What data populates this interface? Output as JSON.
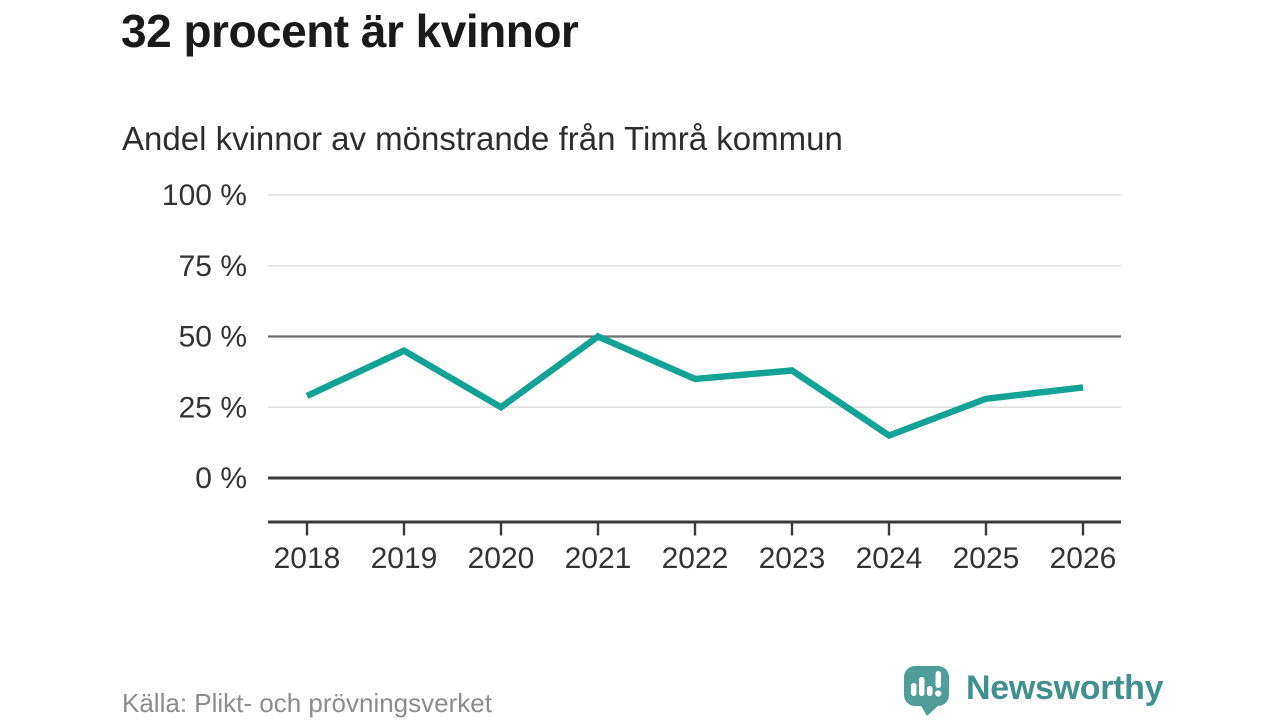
{
  "header": {
    "title": "32 procent är kvinnor",
    "subtitle": "Andel kvinnor av mönstrande från Timrå kommun"
  },
  "chart_data": {
    "type": "line",
    "title": "32 procent är kvinnor",
    "subtitle": "Andel kvinnor av mönstrande från Timrå kommun",
    "x": [
      "2018",
      "2019",
      "2020",
      "2021",
      "2022",
      "2023",
      "2024",
      "2025",
      "2026"
    ],
    "series": [
      {
        "name": "Andel kvinnor av mönstrande",
        "values": [
          29,
          45,
          25,
          50,
          35,
          38,
          15,
          28,
          32
        ]
      }
    ],
    "unit": "%",
    "ylim": [
      0,
      100
    ],
    "yticks": [
      100,
      75,
      50,
      25,
      0
    ],
    "ytick_labels": [
      "100 %",
      "75 %",
      "50 %",
      "25 %",
      "0 %"
    ],
    "xtick_labels": [
      "2018",
      "2019",
      "2020",
      "2021",
      "2022",
      "2023",
      "2024",
      "2025",
      "2026"
    ],
    "grid": "horizontal",
    "emphasized_gridlines": [
      50
    ],
    "baseline_gridline": 0,
    "legend": "none",
    "line_color": "#12a296"
  },
  "footer": {
    "source": "Källa: Plikt- och prövningsverket",
    "brand_name": "Newsworthy"
  },
  "colors": {
    "accent": "#12a296",
    "brand_bubble": "#4f9e99",
    "brand_text": "#3f908e",
    "title_text": "#1a1a1a",
    "axis_text": "#333333",
    "muted_text": "#8c8c8c",
    "grid_light": "#e0e0e0",
    "grid_mid": "#6e6e6e",
    "axis_dark": "#3b3b3b"
  }
}
